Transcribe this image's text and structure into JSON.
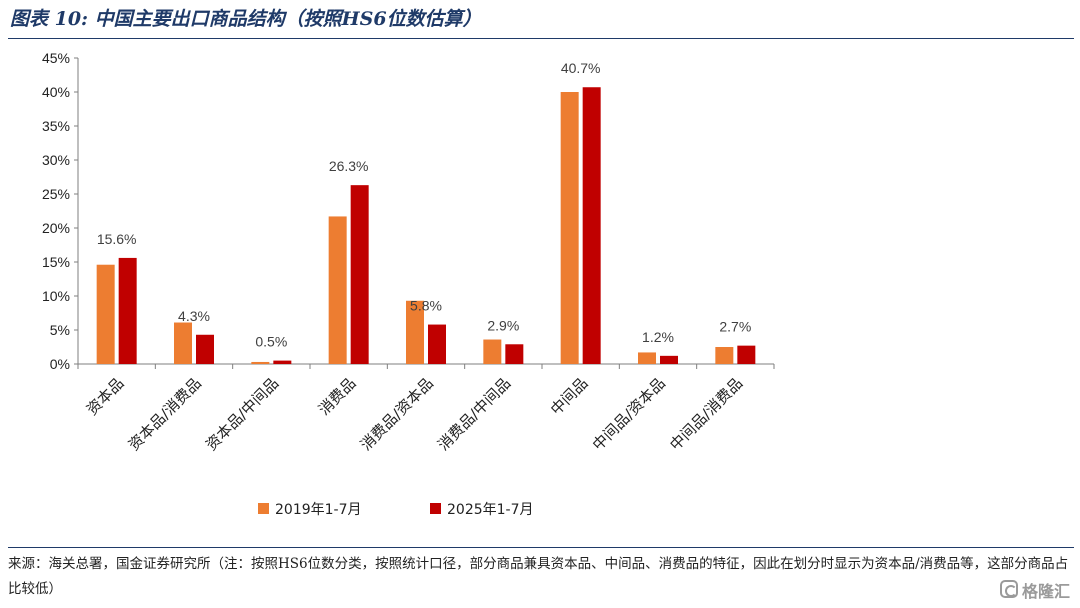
{
  "title": "图表 10: 中国主要出口商品结构（按照HS6位数估算）",
  "source": "来源：海关总署，国金证券研究所（注：按照HS6位数分类，按照统计口径，部分商品兼具资本品、中间品、消费品的特征，因此在划分时显示为资本品/消费品等，这部分商品占比较低）",
  "watermark": "格隆汇",
  "colors": {
    "series_2019": "#ed7d31",
    "series_2025": "#c00000",
    "title": "#1f3a68"
  },
  "chart_data": {
    "type": "bar",
    "categories": [
      "资本品",
      "资本品/消费品",
      "资本品/中间品",
      "消费品",
      "消费品/资本品",
      "消费品/中间品",
      "中间品",
      "中间品/资本品",
      "中间品/消费品"
    ],
    "series": [
      {
        "name": "2019年1-7月",
        "values": [
          14.6,
          6.1,
          0.3,
          21.7,
          9.3,
          3.6,
          40.0,
          1.7,
          2.5
        ]
      },
      {
        "name": "2025年1-7月",
        "values": [
          15.6,
          4.3,
          0.5,
          26.3,
          5.8,
          2.9,
          40.7,
          1.2,
          2.7
        ]
      }
    ],
    "data_labels": [
      "15.6%",
      "4.3%",
      "0.5%",
      "26.3%",
      "5.8%",
      "2.9%",
      "40.7%",
      "1.2%",
      "2.7%"
    ],
    "yticks": [
      "0%",
      "5%",
      "10%",
      "15%",
      "20%",
      "25%",
      "30%",
      "35%",
      "40%",
      "45%"
    ],
    "ylim": [
      0,
      45
    ],
    "grid": false,
    "legend_position": "bottom"
  }
}
